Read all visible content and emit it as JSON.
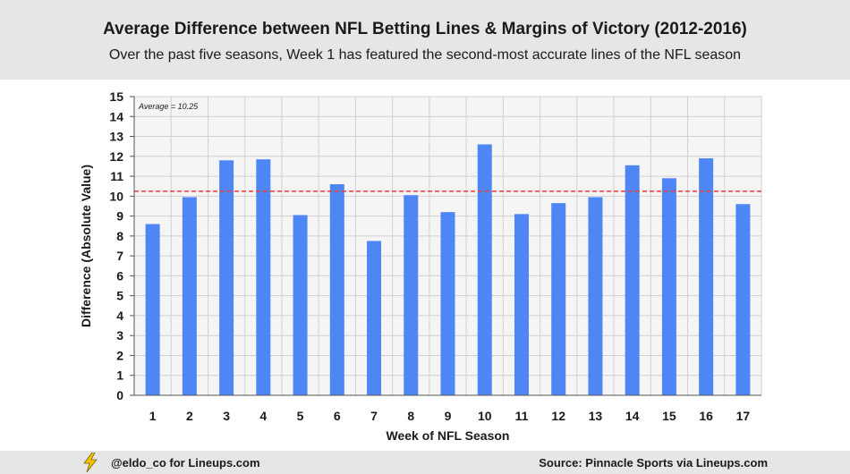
{
  "header": {
    "title": "Average Difference between NFL Betting Lines & Margins of Victory (2012-2016)",
    "subtitle": "Over the past five seasons, Week 1 has featured the second-most accurate lines of the NFL season"
  },
  "footer": {
    "credit": "@eldo_co for Lineups.com",
    "source": "Source: Pinnacle Sports via Lineups.com",
    "icon": "lightning-bolt-icon"
  },
  "colors": {
    "bar": "#4f86f5",
    "average_line": "#e84545",
    "header_bg": "#e6e6e6",
    "plot_bg": "#f5f5f5"
  },
  "chart_data": {
    "type": "bar",
    "xlabel": "Week of NFL Season",
    "ylabel": "Difference (Absolute Value)",
    "categories": [
      "1",
      "2",
      "3",
      "4",
      "5",
      "6",
      "7",
      "8",
      "9",
      "10",
      "11",
      "12",
      "13",
      "14",
      "15",
      "16",
      "17"
    ],
    "values": [
      8.6,
      9.95,
      11.8,
      11.85,
      9.05,
      10.6,
      7.75,
      10.05,
      9.2,
      12.6,
      9.1,
      9.65,
      9.95,
      11.55,
      10.9,
      11.9,
      9.6
    ],
    "ylim": [
      0,
      15
    ],
    "yticks": [
      0,
      1,
      2,
      3,
      4,
      5,
      6,
      7,
      8,
      9,
      10,
      11,
      12,
      13,
      14,
      15
    ],
    "grid": true,
    "average": {
      "value": 10.25,
      "label": "Average = 10.25"
    }
  }
}
